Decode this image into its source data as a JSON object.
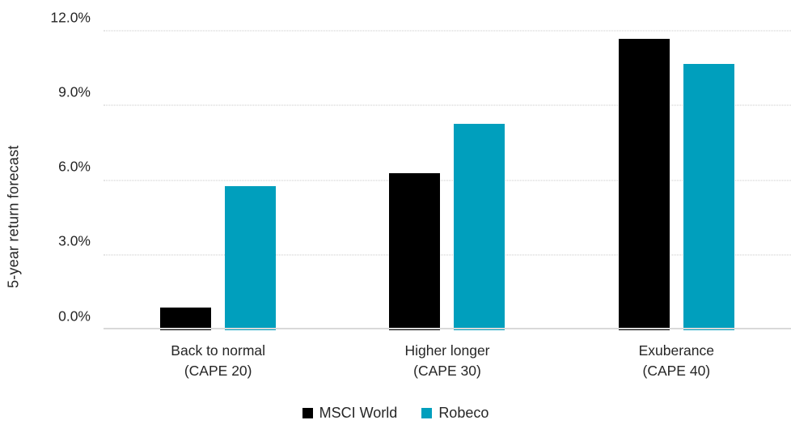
{
  "chart_data": {
    "type": "bar",
    "title": "",
    "xlabel": "",
    "ylabel": "5-year return forecast",
    "categories": [
      {
        "line1": "Back to normal",
        "line2": "(CAPE 20)"
      },
      {
        "line1": "Higher longer",
        "line2": "(CAPE 30)"
      },
      {
        "line1": "Exuberance",
        "line2": "(CAPE 40)"
      }
    ],
    "series": [
      {
        "name": "MSCI World",
        "color": "#000000",
        "values": [
          0.9,
          6.3,
          11.7
        ]
      },
      {
        "name": "Robeco",
        "color": "#009fbd",
        "values": [
          5.8,
          8.3,
          10.7
        ]
      }
    ],
    "y_axis": {
      "min": 0,
      "max": 12,
      "ticks": [
        {
          "value": 0,
          "label": "0.0%"
        },
        {
          "value": 3,
          "label": "3.0%"
        },
        {
          "value": 6,
          "label": "6.0%"
        },
        {
          "value": 9,
          "label": "9.0%"
        },
        {
          "value": 12,
          "label": "12.0%"
        }
      ]
    },
    "grid": "horizontal-dotted",
    "legend_position": "bottom",
    "colors": {
      "gridline": "#c9c9c9",
      "baseline": "#d9d9d9",
      "text": "#262626",
      "background": "#ffffff"
    }
  }
}
